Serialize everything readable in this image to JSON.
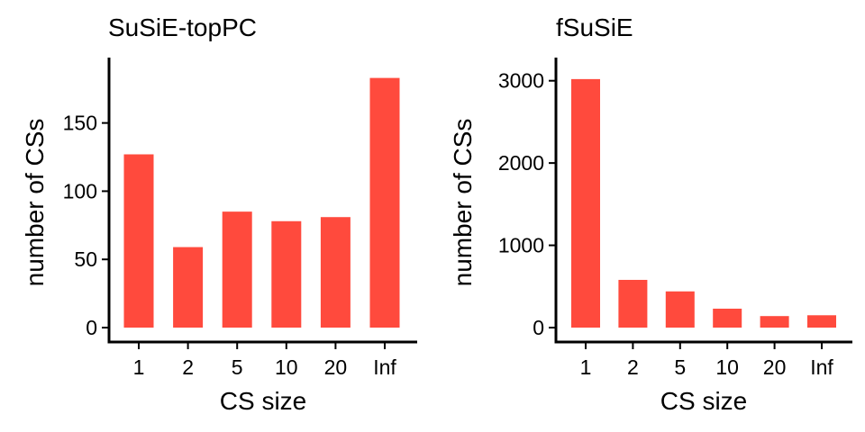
{
  "chart_data": [
    {
      "type": "bar",
      "title": "SuSiE-topPC",
      "xlabel": "CS size",
      "ylabel": "number of CSs",
      "categories": [
        "1",
        "2",
        "5",
        "10",
        "20",
        "Inf"
      ],
      "values": [
        127,
        59,
        85,
        78,
        81,
        183
      ],
      "ylim": [
        0,
        190
      ],
      "yticks": [
        0,
        50,
        100,
        150
      ],
      "color": "#FF4A3D",
      "grid": false,
      "legend": "none"
    },
    {
      "type": "bar",
      "title": "fSuSiE",
      "xlabel": "CS size",
      "ylabel": "number of CSs",
      "categories": [
        "1",
        "2",
        "5",
        "10",
        "20",
        "Inf"
      ],
      "values": [
        3020,
        580,
        440,
        230,
        140,
        150
      ],
      "ylim": [
        0,
        3150
      ],
      "yticks": [
        0,
        1000,
        2000,
        3000
      ],
      "color": "#FF4A3D",
      "grid": false,
      "legend": "none"
    }
  ]
}
